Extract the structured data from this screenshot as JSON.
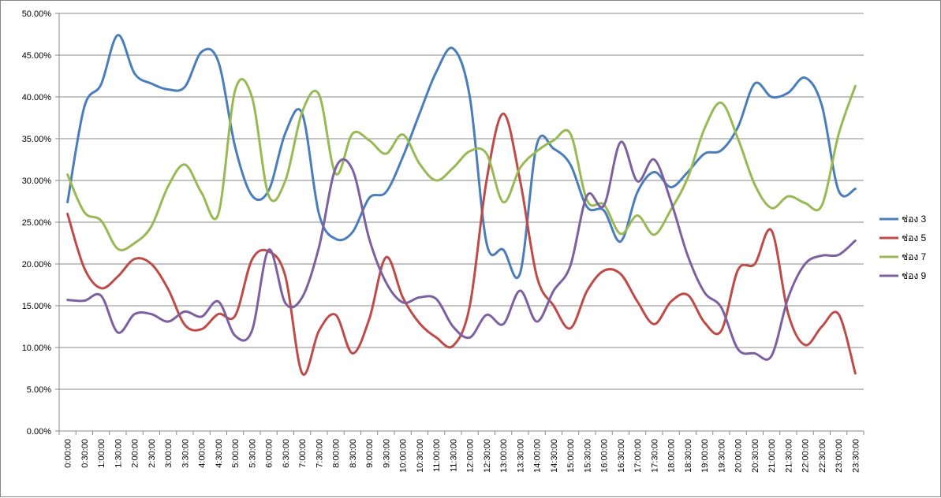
{
  "chart_data": {
    "type": "line",
    "title": "",
    "xlabel": "",
    "ylabel": "",
    "ylim": [
      0,
      50
    ],
    "y_ticks": [
      "0.00%",
      "5.00%",
      "10.00%",
      "15.00%",
      "20.00%",
      "25.00%",
      "30.00%",
      "35.00%",
      "40.00%",
      "45.00%",
      "50.00%"
    ],
    "grid": true,
    "legend_position": "right",
    "smooth": true,
    "categories": [
      "0:00:00",
      "0:30:00",
      "1:00:00",
      "1:30:00",
      "2:00:00",
      "2:30:00",
      "3:00:00",
      "3:30:00",
      "4:00:00",
      "4:30:00",
      "5:00:00",
      "5:30:00",
      "6:00:00",
      "6:30:00",
      "7:00:00",
      "7:30:00",
      "8:00:00",
      "8:30:00",
      "9:00:00",
      "9:30:00",
      "10:00:00",
      "10:30:00",
      "11:00:00",
      "11:30:00",
      "12:00:00",
      "12:30:00",
      "13:00:00",
      "13:30:00",
      "14:00:00",
      "14:30:00",
      "15:00:00",
      "15:30:00",
      "16:00:00",
      "16:30:00",
      "17:00:00",
      "17:30:00",
      "18:00:00",
      "18:30:00",
      "19:00:00",
      "19:30:00",
      "20:00:00",
      "20:30:00",
      "21:00:00",
      "21:30:00",
      "22:00:00",
      "22:30:00",
      "23:00:00",
      "23:30:00"
    ],
    "series": [
      {
        "name": "ช่อง 3",
        "color": "#4A7EBB",
        "values": [
          27.4,
          38.8,
          41.5,
          47.4,
          42.8,
          41.6,
          40.9,
          41.2,
          45.4,
          44.2,
          34.0,
          28.2,
          28.8,
          35.7,
          38.0,
          26.0,
          23.0,
          23.8,
          27.9,
          28.6,
          32.8,
          38.0,
          43.0,
          45.8,
          40.0,
          22.5,
          21.7,
          18.9,
          34.3,
          33.8,
          31.9,
          26.8,
          26.4,
          22.7,
          28.6,
          31.0,
          29.2,
          31.0,
          33.2,
          33.6,
          36.4,
          41.6,
          40.0,
          40.5,
          42.3,
          39.0,
          28.8,
          29.0
        ]
      },
      {
        "name": "ช่อง 5",
        "color": "#BE4B48",
        "values": [
          26.0,
          19.5,
          17.1,
          18.5,
          20.6,
          20.0,
          17.0,
          12.7,
          12.2,
          14.0,
          13.8,
          20.5,
          21.5,
          18.5,
          6.9,
          12.0,
          13.9,
          9.3,
          13.4,
          20.8,
          16.0,
          12.9,
          11.2,
          10.2,
          15.0,
          30.0,
          38.0,
          30.0,
          18.5,
          15.0,
          12.3,
          16.8,
          19.2,
          18.8,
          15.5,
          12.8,
          15.5,
          16.3,
          13.0,
          12.0,
          19.3,
          20.0,
          24.0,
          14.0,
          10.3,
          12.5,
          14.0,
          6.9
        ]
      },
      {
        "name": "ช่อง 7",
        "color": "#98B954",
        "values": [
          30.7,
          26.2,
          25.2,
          21.8,
          22.5,
          24.5,
          29.3,
          31.9,
          28.5,
          26.0,
          40.8,
          40.0,
          28.2,
          30.0,
          38.2,
          40.3,
          30.8,
          35.6,
          34.8,
          33.2,
          35.5,
          32.0,
          30.0,
          31.5,
          33.5,
          33.2,
          27.4,
          31.5,
          33.5,
          34.8,
          35.6,
          27.6,
          27.1,
          23.6,
          25.8,
          23.5,
          26.5,
          30.3,
          36.2,
          39.3,
          35.0,
          29.5,
          26.7,
          28.1,
          27.3,
          27.0,
          35.5,
          41.3
        ]
      },
      {
        "name": "ช่อง 9",
        "color": "#7D60A0",
        "values": [
          15.7,
          15.6,
          16.2,
          11.8,
          14.0,
          14.0,
          13.1,
          14.3,
          13.7,
          15.5,
          11.4,
          12.0,
          21.7,
          15.3,
          16.0,
          22.0,
          31.5,
          31.3,
          23.0,
          17.8,
          15.4,
          16.0,
          15.8,
          12.5,
          11.2,
          13.9,
          12.8,
          16.8,
          13.1,
          16.8,
          19.8,
          28.2,
          27.0,
          34.6,
          29.9,
          32.5,
          27.5,
          21.0,
          16.6,
          14.8,
          9.8,
          9.3,
          9.0,
          16.0,
          20.0,
          21.0,
          21.1,
          22.8
        ]
      }
    ]
  }
}
